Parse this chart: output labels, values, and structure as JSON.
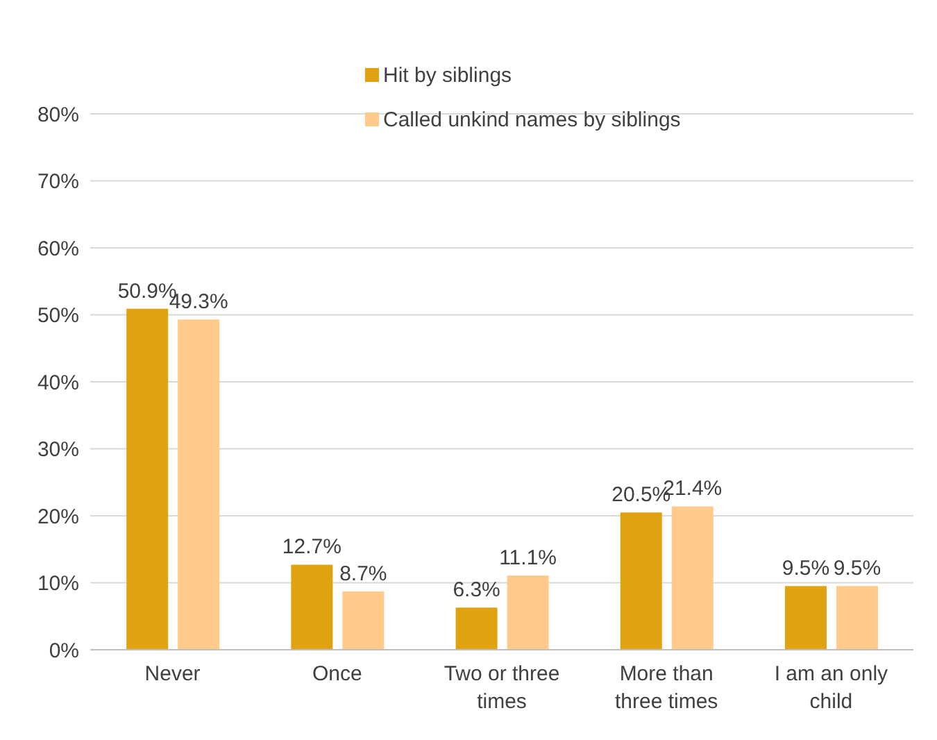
{
  "chart_data": {
    "type": "bar",
    "categories": [
      "Never",
      "Once",
      "Two or three times",
      "More than three times",
      "I am an only child"
    ],
    "series": [
      {
        "name": "Hit by siblings",
        "color": "#e0a210",
        "values": [
          50.9,
          12.7,
          6.3,
          20.5,
          9.5
        ],
        "value_labels": [
          "50.9%",
          "12.7%",
          "6.3%",
          "20.5%",
          "9.5%"
        ]
      },
      {
        "name": "Called unkind names by siblings",
        "color": "#ffca8a",
        "values": [
          49.3,
          8.7,
          11.1,
          21.4,
          9.5
        ],
        "value_labels": [
          "49.3%",
          "8.7%",
          "11.1%",
          "21.4%",
          "9.5%"
        ]
      }
    ],
    "ylim": [
      0,
      80
    ],
    "yticks": [
      {
        "value": 0,
        "label": "0%"
      },
      {
        "value": 10,
        "label": "10%"
      },
      {
        "value": 20,
        "label": "20%"
      },
      {
        "value": 30,
        "label": "30%"
      },
      {
        "value": 40,
        "label": "40%"
      },
      {
        "value": 50,
        "label": "50%"
      },
      {
        "value": 60,
        "label": "60%"
      },
      {
        "value": 70,
        "label": "70%"
      },
      {
        "value": 80,
        "label": "80%"
      }
    ],
    "grid": "y",
    "legend": "top"
  }
}
